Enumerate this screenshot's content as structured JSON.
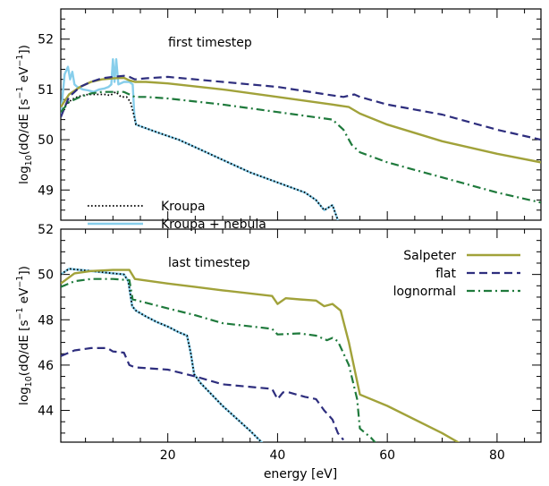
{
  "chart_data": [
    {
      "type": "line",
      "panel": "top",
      "annotation": "first timestep",
      "xlabel": "",
      "ylabel": "log10(dQ/dE [s^-1 eV^-1])",
      "ylabel_parts": {
        "pre": "log",
        "sub10": "10",
        "mid": "(dQ/dE [s",
        "sup1": "−1",
        "mid2": " eV",
        "sup2": "−1",
        "post": "])"
      },
      "xlim": [
        0.5,
        88
      ],
      "ylim": [
        48.4,
        52.6
      ],
      "yticks": [
        49,
        50,
        51,
        52
      ],
      "ytick_labels": [
        "49",
        "50",
        "51",
        "52"
      ],
      "xticks": [
        20,
        40,
        60,
        80
      ],
      "legend": {
        "placement": "bottom-left",
        "entries": [
          {
            "label": "Kroupa",
            "series": "Kroupa"
          },
          {
            "label": "Kroupa + nebula",
            "series": "Kroupa + nebula"
          }
        ]
      },
      "series": [
        {
          "name": "Kroupa + nebula",
          "color": "#87ceeb",
          "dash": "solid",
          "width": 2.4,
          "x": [
            0.5,
            1.2,
            1.8,
            2.2,
            2.6,
            3.0,
            3.5,
            4.5,
            5.5,
            6.5,
            7.5,
            8.5,
            9.2,
            9.7,
            10.0,
            10.3,
            10.6,
            11.0,
            12.0,
            13.0,
            13.6,
            13.9,
            14.2,
            18,
            22,
            25,
            30,
            35,
            40,
            45,
            47,
            48.5,
            50,
            51
          ],
          "y": [
            50.5,
            51.3,
            51.45,
            51.2,
            51.35,
            51.1,
            51.05,
            51.0,
            50.98,
            50.95,
            51.0,
            51.02,
            51.05,
            51.1,
            51.6,
            51.15,
            51.6,
            51.1,
            51.15,
            51.15,
            51.1,
            50.5,
            50.3,
            50.15,
            50.0,
            49.85,
            49.6,
            49.35,
            49.15,
            48.95,
            48.8,
            48.6,
            48.7,
            48.4
          ]
        },
        {
          "name": "Kroupa",
          "color": "#000000",
          "dash": "dotted",
          "width": 1.8,
          "x": [
            0.5,
            1.5,
            2.5,
            3.5,
            4.5,
            5.5,
            6.5,
            7.5,
            8.5,
            9.5,
            10.5,
            11.5,
            12.5,
            13.2,
            13.8,
            14.2,
            18,
            22,
            25,
            30,
            35,
            40,
            45,
            47,
            48.5,
            50,
            51
          ],
          "y": [
            50.55,
            50.7,
            50.8,
            50.85,
            50.88,
            50.9,
            50.9,
            50.9,
            50.9,
            50.88,
            50.95,
            50.85,
            50.85,
            50.75,
            50.5,
            50.3,
            50.15,
            50.0,
            49.85,
            49.6,
            49.35,
            49.15,
            48.95,
            48.8,
            48.6,
            48.7,
            48.4
          ]
        },
        {
          "name": "Salpeter",
          "color": "#a1a23a",
          "dash": "solid",
          "width": 2.4,
          "x": [
            0.5,
            2,
            4,
            6,
            8,
            10,
            12,
            13,
            14,
            16,
            20,
            30,
            40,
            50,
            53,
            55,
            60,
            70,
            80,
            88
          ],
          "y": [
            50.65,
            50.9,
            51.05,
            51.15,
            51.2,
            51.22,
            51.23,
            51.18,
            51.15,
            51.15,
            51.12,
            51.0,
            50.85,
            50.7,
            50.65,
            50.52,
            50.3,
            49.97,
            49.72,
            49.55
          ]
        },
        {
          "name": "flat",
          "color": "#2e2e7e",
          "dash": "dashed",
          "width": 2.2,
          "x": [
            0.5,
            2,
            4,
            6,
            8,
            10,
            12,
            13,
            14,
            16,
            20,
            30,
            40,
            50,
            52,
            54,
            55,
            60,
            70,
            80,
            88
          ],
          "y": [
            50.45,
            50.85,
            51.05,
            51.15,
            51.22,
            51.25,
            51.27,
            51.25,
            51.2,
            51.22,
            51.25,
            51.15,
            51.05,
            50.88,
            50.85,
            50.9,
            50.85,
            50.7,
            50.5,
            50.2,
            50.0
          ]
        },
        {
          "name": "lognormal",
          "color": "#1f7a3c",
          "dash": "dashdot",
          "width": 2.2,
          "x": [
            0.5,
            2,
            4,
            6,
            8,
            10,
            12,
            13,
            14,
            16,
            20,
            30,
            40,
            50,
            52,
            53.5,
            55,
            60,
            70,
            80,
            88
          ],
          "y": [
            50.55,
            50.75,
            50.85,
            50.92,
            50.95,
            50.95,
            50.95,
            50.9,
            50.85,
            50.85,
            50.82,
            50.7,
            50.55,
            50.4,
            50.2,
            49.9,
            49.75,
            49.55,
            49.25,
            48.95,
            48.75
          ]
        }
      ]
    },
    {
      "type": "line",
      "panel": "bottom",
      "annotation": "last timestep",
      "xlabel": "energy [eV]",
      "ylabel": "log10(dQ/dE [s^-1 eV^-1])",
      "ylabel_parts": {
        "pre": "log",
        "sub10": "10",
        "mid": "(dQ/dE [s",
        "sup1": "−1",
        "mid2": " eV",
        "sup2": "−1",
        "post": "])"
      },
      "xlim": [
        0.5,
        88
      ],
      "ylim": [
        42.6,
        52
      ],
      "yticks": [
        44,
        46,
        48,
        50,
        52
      ],
      "ytick_labels": [
        "44",
        "46",
        "48",
        "50",
        "52"
      ],
      "xticks": [
        20,
        40,
        60,
        80
      ],
      "xtick_labels": [
        "20",
        "40",
        "60",
        "80"
      ],
      "legend": {
        "placement": "top-right",
        "entries": [
          {
            "label": "Salpeter",
            "series": "Salpeter"
          },
          {
            "label": "flat",
            "series": "flat"
          },
          {
            "label": "lognormal",
            "series": "lognormal"
          }
        ]
      },
      "series": [
        {
          "name": "Kroupa + nebula",
          "color": "#87ceeb",
          "dash": "solid",
          "width": 2.6,
          "x": [
            0.5,
            2,
            4,
            6,
            8,
            10,
            12,
            12.8,
            13.5,
            14.2,
            16,
            18,
            20,
            22,
            23.5,
            24.2,
            24.8,
            26,
            30,
            35,
            40,
            42.5
          ],
          "y": [
            50.0,
            50.25,
            50.2,
            50.15,
            50.1,
            50.05,
            50.0,
            49.7,
            48.6,
            48.4,
            48.15,
            47.9,
            47.7,
            47.45,
            47.3,
            46.5,
            45.6,
            45.2,
            44.2,
            43.1,
            41.9,
            41.3
          ]
        },
        {
          "name": "Kroupa",
          "color": "#000000",
          "dash": "dotted",
          "width": 1.8,
          "x": [
            0.5,
            2,
            4,
            6,
            8,
            10,
            12,
            12.8,
            13.5,
            14.2,
            16,
            18,
            20,
            22,
            23.5,
            24.2,
            24.8,
            26,
            30,
            35,
            40,
            42.5
          ],
          "y": [
            50.0,
            50.25,
            50.2,
            50.15,
            50.1,
            50.05,
            50.0,
            49.7,
            48.6,
            48.4,
            48.15,
            47.9,
            47.7,
            47.45,
            47.3,
            46.5,
            45.6,
            45.2,
            44.2,
            43.1,
            41.9,
            41.3
          ]
        },
        {
          "name": "Salpeter",
          "color": "#a1a23a",
          "dash": "solid",
          "width": 2.4,
          "x": [
            0.5,
            3,
            6,
            10,
            13,
            14,
            20,
            25,
            30,
            39,
            40,
            41.5,
            44,
            47,
            48.5,
            50,
            51.5,
            53,
            55,
            60,
            70,
            80,
            88
          ],
          "y": [
            49.6,
            50.05,
            50.15,
            50.2,
            50.2,
            49.8,
            49.6,
            49.45,
            49.3,
            49.05,
            48.7,
            48.95,
            48.9,
            48.85,
            48.6,
            48.7,
            48.4,
            47.0,
            44.7,
            44.2,
            43.0,
            41.6,
            40.9
          ]
        },
        {
          "name": "flat",
          "color": "#2e2e7e",
          "dash": "dashed",
          "width": 2.2,
          "x": [
            0.5,
            3,
            6,
            9,
            10,
            12,
            13,
            14,
            20,
            25,
            30,
            39,
            40,
            41,
            42,
            45,
            47,
            48.5,
            50,
            51,
            52
          ],
          "y": [
            46.4,
            46.65,
            46.75,
            46.75,
            46.6,
            46.55,
            46.0,
            45.9,
            45.8,
            45.5,
            45.15,
            44.95,
            44.5,
            44.8,
            44.8,
            44.6,
            44.5,
            44.0,
            43.6,
            43.0,
            42.7
          ]
        },
        {
          "name": "lognormal",
          "color": "#1f7a3c",
          "dash": "dashdot",
          "width": 2.2,
          "x": [
            0.5,
            3,
            6,
            10,
            13,
            13.6,
            14.5,
            20,
            25,
            30,
            39,
            40,
            44,
            47,
            49,
            50,
            51,
            53,
            54.5,
            55,
            57,
            58.5
          ],
          "y": [
            49.45,
            49.7,
            49.8,
            49.8,
            49.75,
            48.9,
            48.85,
            48.5,
            48.2,
            47.85,
            47.6,
            47.35,
            47.4,
            47.3,
            47.1,
            47.2,
            47.05,
            46.0,
            44.5,
            43.2,
            42.8,
            42.4
          ]
        }
      ]
    }
  ]
}
